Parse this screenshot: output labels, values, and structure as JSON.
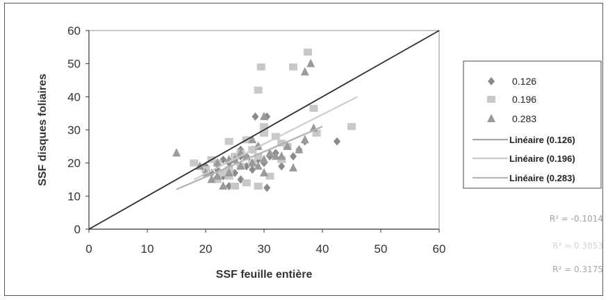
{
  "colors": {
    "s126": "#8a8a8a",
    "s196": "#c8c8c8",
    "s283": "#9a9a9a",
    "identity_line": "#2b2b2b",
    "lin126": "#a6a6a6",
    "lin196": "#cccccc",
    "lin283": "#b4b4b4",
    "r2_text": [
      "#a0a0a0",
      "#d4d4d4",
      "#a8a8a8"
    ]
  },
  "chart_data": {
    "type": "scatter",
    "xlabel": "SSF feuille entière",
    "ylabel": "SSF disques foliaires",
    "xlim": [
      0,
      60
    ],
    "ylim": [
      0,
      60
    ],
    "xticks": [
      0,
      10,
      20,
      30,
      40,
      50,
      60
    ],
    "yticks": [
      0,
      10,
      20,
      30,
      40,
      50,
      60
    ],
    "grid": false,
    "legend_position": "right",
    "identity_line": {
      "x": [
        0,
        60
      ],
      "y": [
        0,
        60
      ]
    },
    "series": [
      {
        "name": "0.126",
        "marker": "diamond",
        "points": [
          [
            28.5,
            34
          ],
          [
            30.5,
            34
          ],
          [
            37,
            26.5
          ],
          [
            42.5,
            26.5
          ],
          [
            30.5,
            12.5
          ],
          [
            26,
            22
          ],
          [
            24,
            20
          ],
          [
            22,
            18
          ],
          [
            27,
            19
          ],
          [
            29,
            21
          ],
          [
            25,
            17
          ],
          [
            23,
            16
          ],
          [
            28,
            24
          ],
          [
            26,
            15
          ],
          [
            31,
            22
          ],
          [
            33,
            19
          ],
          [
            21,
            17
          ],
          [
            24,
            13
          ],
          [
            27,
            22
          ],
          [
            29,
            25
          ],
          [
            30,
            20
          ],
          [
            26,
            24
          ],
          [
            23,
            21
          ],
          [
            28,
            18
          ],
          [
            32,
            23
          ],
          [
            25,
            21
          ],
          [
            20,
            19
          ],
          [
            35,
            22
          ],
          [
            36,
            24
          ]
        ]
      },
      {
        "name": "0.196",
        "marker": "square",
        "points": [
          [
            37.5,
            53.5
          ],
          [
            29.5,
            49
          ],
          [
            35,
            49
          ],
          [
            29,
            42
          ],
          [
            38.5,
            36.5
          ],
          [
            45,
            31
          ],
          [
            24,
            26.5
          ],
          [
            33,
            26
          ],
          [
            34,
            25
          ],
          [
            39,
            29
          ],
          [
            18,
            20
          ],
          [
            20,
            18
          ],
          [
            22,
            20
          ],
          [
            25,
            22
          ],
          [
            26,
            19
          ],
          [
            27,
            14
          ],
          [
            29,
            13
          ],
          [
            24,
            16
          ],
          [
            31,
            16
          ],
          [
            28,
            24
          ],
          [
            30,
            31
          ],
          [
            30,
            29
          ],
          [
            27,
            27
          ],
          [
            23,
            17
          ],
          [
            26,
            23
          ],
          [
            32,
            28
          ],
          [
            28,
            20
          ],
          [
            29,
            22
          ],
          [
            24,
            18
          ],
          [
            21,
            21
          ],
          [
            25,
            13
          ],
          [
            22,
            15
          ],
          [
            33,
            21
          ]
        ]
      },
      {
        "name": "0.283",
        "marker": "triangle",
        "points": [
          [
            38,
            50
          ],
          [
            37,
            47.5
          ],
          [
            15,
            23
          ],
          [
            22,
            20
          ],
          [
            30,
            34
          ],
          [
            38.5,
            30.5
          ],
          [
            37,
            27
          ],
          [
            36,
            24
          ],
          [
            34,
            25
          ],
          [
            33,
            22
          ],
          [
            35,
            18.5
          ],
          [
            30,
            17
          ],
          [
            28,
            20
          ],
          [
            26,
            19
          ],
          [
            24,
            17
          ],
          [
            22,
            16
          ],
          [
            23,
            13
          ],
          [
            21,
            15
          ],
          [
            27,
            22
          ],
          [
            29,
            25
          ],
          [
            31,
            23
          ],
          [
            25,
            21
          ],
          [
            19,
            19
          ],
          [
            32,
            22
          ],
          [
            29,
            19
          ],
          [
            26,
            23
          ],
          [
            24,
            21
          ],
          [
            28,
            27
          ],
          [
            20,
            17
          ],
          [
            30,
            21
          ]
        ]
      }
    ],
    "trendlines": [
      {
        "name": "Linéaire (0.126)",
        "x": [
          15,
          40
        ],
        "y": [
          12,
          31
        ],
        "r2_label": "R² = -0.1014"
      },
      {
        "name": "Linéaire (0.196)",
        "x": [
          18,
          46
        ],
        "y": [
          15,
          40
        ],
        "r2_label": "R² = 0.3853"
      },
      {
        "name": "Linéaire (0.283)",
        "x": [
          15,
          40
        ],
        "y": [
          12,
          31
        ],
        "r2_label": "R² = 0.3175"
      }
    ]
  }
}
